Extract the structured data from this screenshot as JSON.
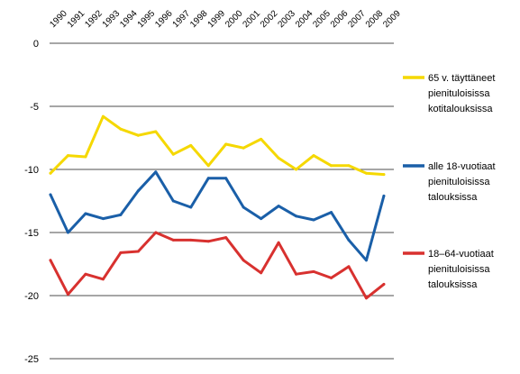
{
  "chart_data": {
    "type": "line",
    "title": "",
    "xlabel": "",
    "ylabel": "",
    "x": [
      1990,
      1991,
      1992,
      1993,
      1994,
      1995,
      1996,
      1997,
      1998,
      1999,
      2000,
      2001,
      2002,
      2003,
      2004,
      2005,
      2006,
      2007,
      2008,
      2009
    ],
    "x_tick_labels": [
      "1990",
      "1991",
      "1992",
      "1993",
      "1994",
      "1995",
      "1996",
      "1997",
      "1998",
      "1999",
      "2000",
      "2001",
      "2002",
      "2003",
      "2004",
      "2005",
      "2006",
      "2007",
      "2008",
      "2009"
    ],
    "ylim": [
      -25,
      0
    ],
    "y_ticks": [
      0,
      -5,
      -10,
      -15,
      -20,
      -25
    ],
    "y_tick_labels": [
      "0",
      "-5",
      "-10",
      "-15",
      "-20",
      "-25"
    ],
    "grid": "horizontal",
    "legend_position": "right",
    "series": [
      {
        "name": "65 v. täyttäneet pienituloisissa kotitalouksissa",
        "legend_lines": [
          "65 v. täyttäneet",
          "pienituloisissa",
          "kotitalouksissa"
        ],
        "color": "#f5d800",
        "values": [
          -10.3,
          -8.9,
          -9.0,
          -5.8,
          -6.8,
          -7.3,
          -7.0,
          -8.8,
          -8.1,
          -9.7,
          -8.0,
          -8.3,
          -7.6,
          -9.1,
          -10.0,
          -8.9,
          -9.7,
          -9.7,
          -10.3,
          -10.4
        ]
      },
      {
        "name": "alle 18-vuotiaat pienituloisissa talouksissa",
        "legend_lines": [
          "alle 18-vuotiaat",
          "pienituloisissa",
          "talouksissa"
        ],
        "color": "#1a5fa8",
        "values": [
          -12.0,
          -15.0,
          -13.5,
          -13.9,
          -13.6,
          -11.7,
          -10.2,
          -12.5,
          -13.0,
          -10.7,
          -10.7,
          -13.0,
          -13.9,
          -12.9,
          -13.7,
          -14.0,
          -13.4,
          -15.6,
          -17.2,
          -12.1
        ]
      },
      {
        "name": "18–64-vuotiaat pienituloisissa talouksissa",
        "legend_lines": [
          "18–64-vuotiaat",
          "pienituloisissa",
          "talouksissa"
        ],
        "color": "#d8312f",
        "values": [
          -17.2,
          -19.9,
          -18.3,
          -18.7,
          -16.6,
          -16.5,
          -15.0,
          -15.6,
          -15.6,
          -15.7,
          -15.4,
          -17.2,
          -18.2,
          -15.8,
          -18.3,
          -18.1,
          -18.6,
          -17.7,
          -20.2,
          -19.1
        ]
      }
    ]
  }
}
